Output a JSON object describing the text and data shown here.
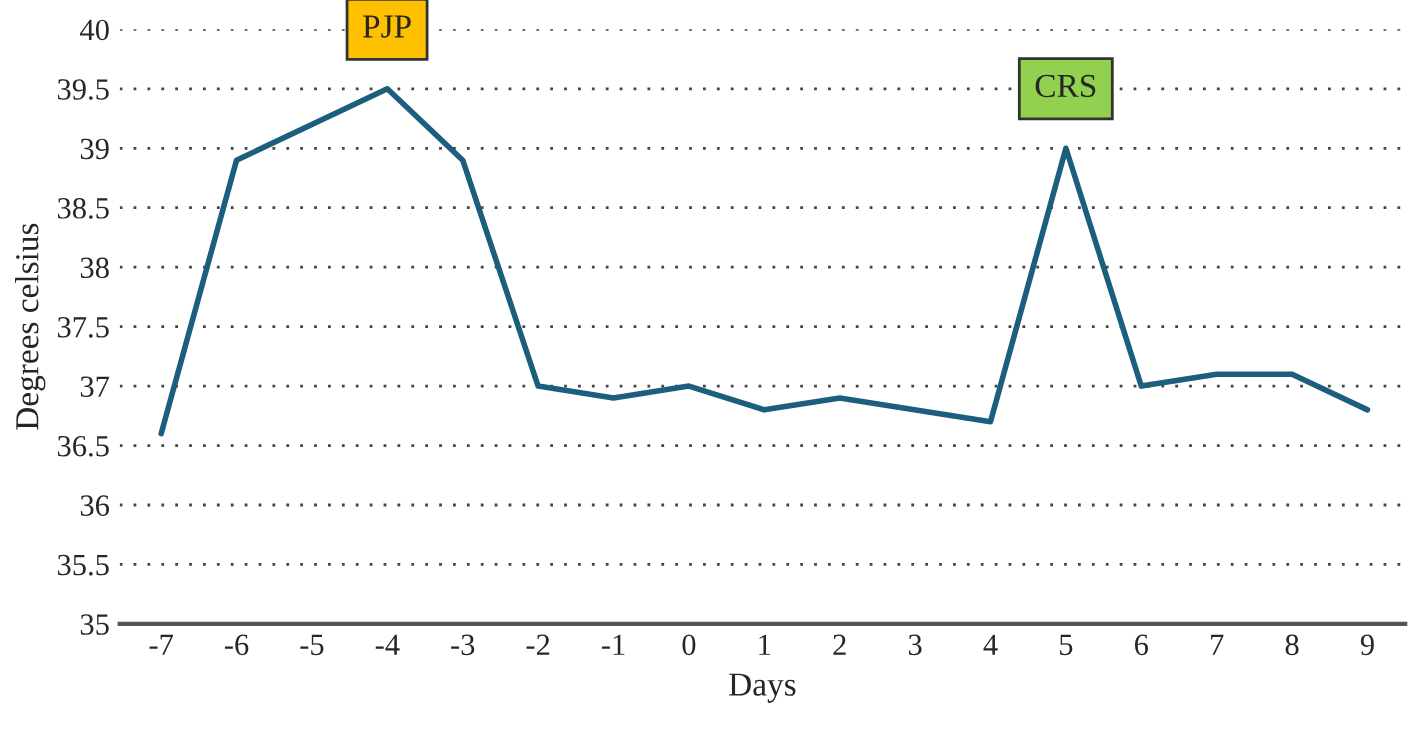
{
  "chart_data": {
    "type": "line",
    "xlabel": "Days",
    "ylabel": "Degrees celsius",
    "series": [
      {
        "color": "#1b5e7e",
        "x": [
          -7,
          -6,
          -4,
          -3,
          -2,
          -1,
          0,
          1,
          2,
          4,
          5,
          6,
          7,
          8,
          9
        ],
        "values": [
          36.6,
          38.9,
          39.5,
          38.9,
          37.0,
          36.9,
          37.0,
          36.8,
          36.9,
          36.7,
          39.0,
          37.0,
          37.1,
          37.1,
          36.8
        ]
      }
    ],
    "xlim": [
      -7.55,
      9.5
    ],
    "xticks": [
      -7,
      -6,
      -5,
      -4,
      -3,
      -2,
      -1,
      0,
      1,
      2,
      3,
      4,
      5,
      6,
      7,
      8,
      9
    ],
    "ylim": [
      35,
      40
    ],
    "yticks": [
      35,
      35.5,
      36,
      36.5,
      37,
      37.5,
      38,
      38.5,
      39,
      39.5,
      40
    ],
    "grid": "y",
    "marker": "none",
    "line_style": "solid",
    "legend": false,
    "annotations": [
      "PJP",
      "CRS"
    ]
  }
}
